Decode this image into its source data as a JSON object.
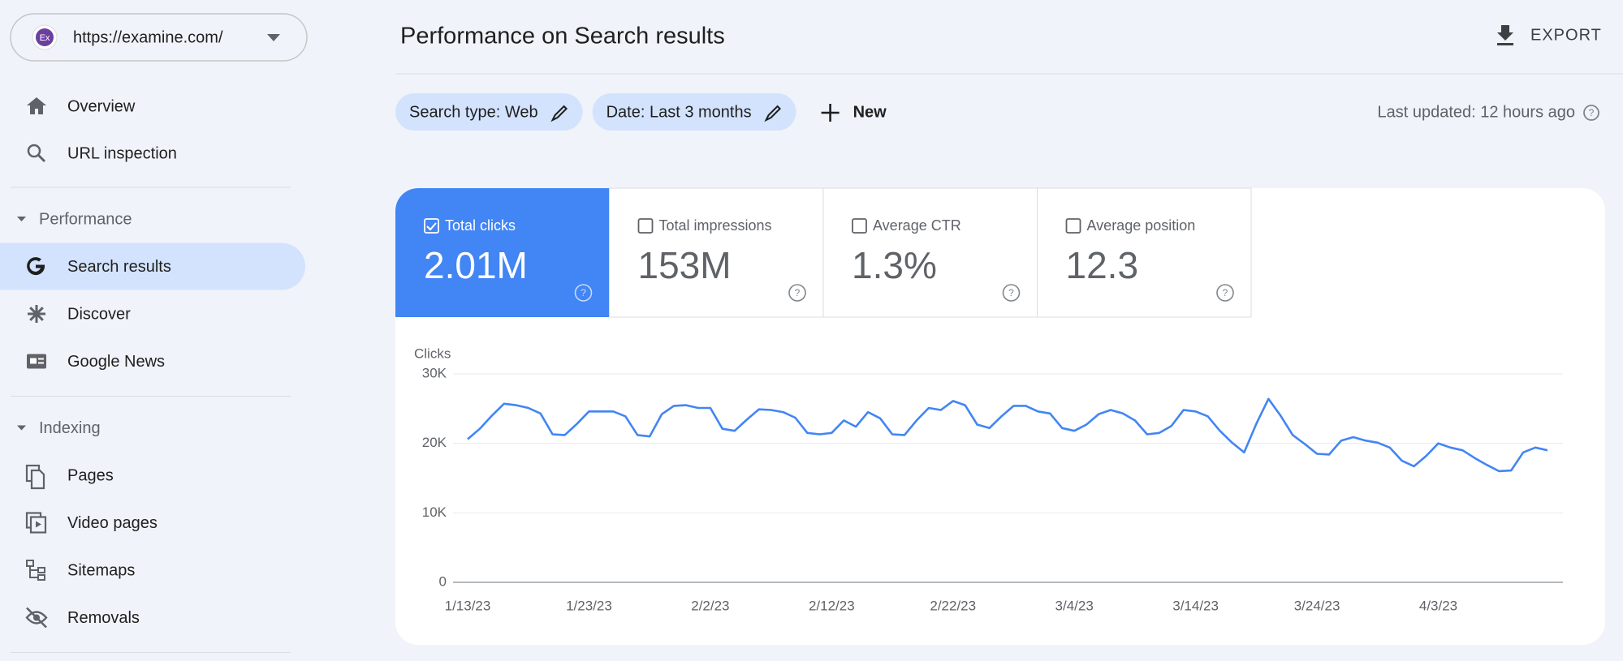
{
  "sidebar": {
    "property": "https://examine.com/",
    "property_icon": "Ex",
    "top_items": [
      "Overview",
      "URL inspection"
    ],
    "sections": [
      {
        "title": "Performance",
        "items": [
          "Search results",
          "Discover",
          "Google News"
        ]
      },
      {
        "title": "Indexing",
        "items": [
          "Pages",
          "Video pages",
          "Sitemaps",
          "Removals"
        ]
      }
    ],
    "selected": "Search results"
  },
  "header": {
    "title": "Performance on Search results",
    "export": "EXPORT"
  },
  "filters": {
    "chips": [
      "Search type: Web",
      "Date: Last 3 months"
    ],
    "new": "New",
    "last_updated": "Last updated: 12 hours ago"
  },
  "metrics": [
    {
      "label": "Total clicks",
      "value": "2.01M",
      "checked": true
    },
    {
      "label": "Total impressions",
      "value": "153M",
      "checked": false
    },
    {
      "label": "Average CTR",
      "value": "1.3%",
      "checked": false
    },
    {
      "label": "Average position",
      "value": "12.3",
      "checked": false
    }
  ],
  "chart_data": {
    "type": "line",
    "y_label": "Clicks",
    "color": "#4285f4",
    "grid": true,
    "categories": [
      "1/13/23",
      null,
      null,
      null,
      null,
      null,
      null,
      null,
      null,
      null,
      "1/23/23",
      null,
      null,
      null,
      null,
      null,
      null,
      null,
      null,
      null,
      "2/2/23",
      null,
      null,
      null,
      null,
      null,
      null,
      null,
      null,
      null,
      "2/12/23",
      null,
      null,
      null,
      null,
      null,
      null,
      null,
      null,
      null,
      "2/22/23",
      null,
      null,
      null,
      null,
      null,
      null,
      null,
      null,
      null,
      "3/4/23",
      null,
      null,
      null,
      null,
      null,
      null,
      null,
      null,
      null,
      "3/14/23",
      null,
      null,
      null,
      null,
      null,
      null,
      null,
      null,
      null,
      "3/24/23",
      null,
      null,
      null,
      null,
      null,
      null,
      null,
      null,
      null,
      "4/3/23",
      null,
      null,
      null,
      null,
      null,
      null,
      null,
      null,
      null
    ],
    "values": [
      20600,
      22100,
      24000,
      25700,
      25500,
      25100,
      24300,
      21300,
      21200,
      22800,
      24600,
      24600,
      24600,
      23900,
      21200,
      21000,
      24200,
      25400,
      25500,
      25100,
      25100,
      22100,
      21800,
      23400,
      24900,
      24800,
      24500,
      23700,
      21500,
      21300,
      21500,
      23300,
      22400,
      24500,
      23600,
      21300,
      21200,
      23300,
      25100,
      24800,
      26100,
      25500,
      22700,
      22200,
      23900,
      25400,
      25400,
      24600,
      24300,
      22200,
      21800,
      22700,
      24200,
      24800,
      24300,
      23300,
      21300,
      21500,
      22500,
      24800,
      24600,
      23900,
      21800,
      20100,
      18700,
      22800,
      26400,
      24000,
      21200,
      19900,
      18500,
      18400,
      20400,
      20900,
      20400,
      20100,
      19400,
      17500,
      16700,
      18200,
      20000,
      19400,
      19000,
      17900,
      16900,
      16000,
      16100,
      18700,
      19400,
      19000
    ],
    "ylim": [
      0,
      30000
    ],
    "yticks": [
      {
        "value": 0,
        "label": "0"
      },
      {
        "value": 10000,
        "label": "10K"
      },
      {
        "value": 20000,
        "label": "20K"
      },
      {
        "value": 30000,
        "label": "30K"
      }
    ]
  }
}
